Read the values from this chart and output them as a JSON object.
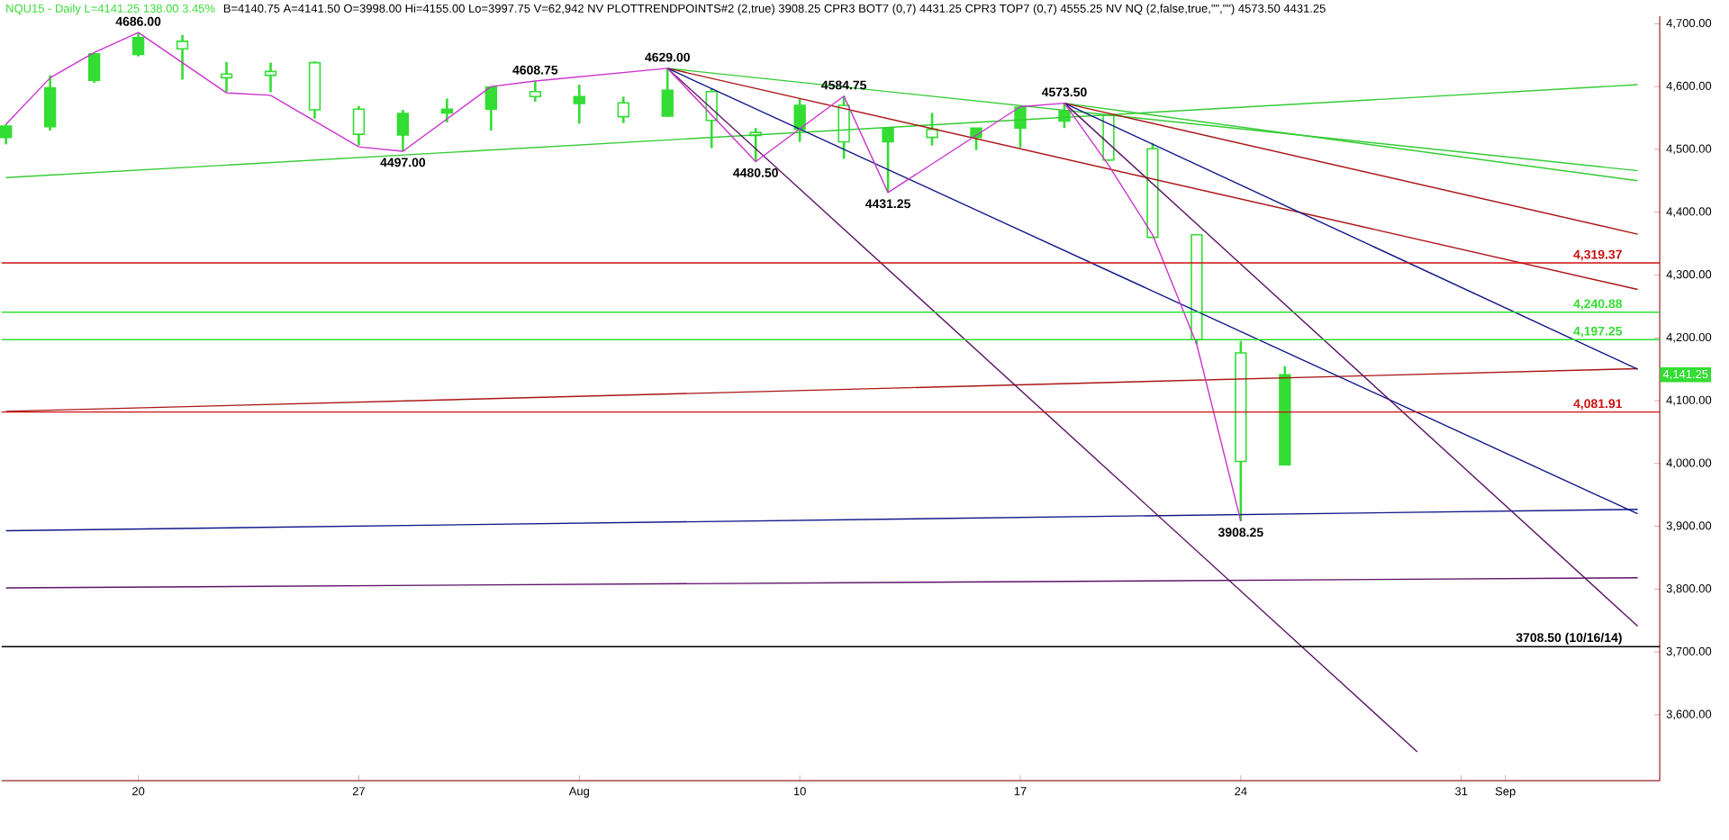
{
  "chart_data": {
    "type": "candlestick",
    "title": "NQU15 - Daily L=4141.25 138.00 3.45%",
    "subtitle": "B=4140.75 A=4141.50 O=3998.00 Hi=4155.00 Lo=3997.75 V=62,942 NV PLOTTRENDPOINTS#2 (2,true) 3908.25 CPR3 BOT7 (0,7) 4431.25 CPR3 TOP7 (0,7) 4555.25 NV NQ (2,false,true,\"\",\"\") 4573.50 4431.25",
    "categories": [
      null,
      null,
      null,
      "20",
      null,
      null,
      null,
      null,
      "27",
      null,
      null,
      null,
      null,
      "Aug",
      null,
      null,
      null,
      null,
      "10",
      null,
      null,
      null,
      null,
      "17",
      null,
      null,
      null,
      null,
      "24",
      null,
      null,
      null,
      null,
      "31",
      "Sep",
      null,
      null,
      null
    ],
    "color": "#33dd33",
    "ohlc": [
      [
        4519,
        4540,
        4508,
        4537
      ],
      [
        4536,
        4618,
        4530,
        4598
      ],
      [
        4610,
        4654,
        4606,
        4652
      ],
      [
        4651,
        4686,
        4648,
        4678
      ],
      [
        4672,
        4682,
        4611,
        4660
      ],
      [
        4620,
        4639,
        4591,
        4614
      ],
      [
        4624,
        4638,
        4591,
        4618
      ],
      [
        4638,
        4640,
        4549,
        4563
      ],
      [
        4564,
        4569,
        4506,
        4524
      ],
      [
        4523,
        4563,
        4497,
        4557
      ],
      [
        4558,
        4581,
        4543,
        4564
      ],
      [
        4564,
        4599,
        4530,
        4599
      ],
      [
        4592,
        4608.75,
        4576,
        4584
      ],
      [
        4573,
        4603,
        4541,
        4584
      ],
      [
        4574,
        4584,
        4542,
        4552
      ],
      [
        4553,
        4629,
        4552,
        4594
      ],
      [
        4592,
        4597,
        4502,
        4546
      ],
      [
        4527,
        4534,
        4480.5,
        4522
      ],
      [
        4532,
        4580,
        4512,
        4570
      ],
      [
        4570,
        4584.75,
        4485,
        4512
      ],
      [
        4512,
        4535,
        4431.25,
        4533
      ],
      [
        4532,
        4558,
        4506,
        4519
      ],
      [
        4519,
        4534,
        4499,
        4534
      ],
      [
        4534,
        4567,
        4503,
        4567
      ],
      [
        4545,
        4573.5,
        4534,
        4561
      ],
      [
        4554,
        4555,
        4482,
        4483
      ],
      [
        4501,
        4510,
        4360,
        4360
      ],
      [
        4364,
        4364,
        4190,
        4197.25
      ],
      [
        4176,
        4195,
        3908.25,
        4003.25
      ],
      [
        3998,
        4155,
        3997.75,
        4141.25
      ],
      null,
      null,
      null,
      null,
      null,
      null,
      null,
      null
    ],
    "series": [
      {
        "type": "line",
        "color": "#33cc33",
        "values": [
          4455,
          null,
          null,
          null,
          null,
          null,
          null,
          null,
          null,
          null,
          null,
          null,
          null,
          null,
          null,
          null,
          null,
          null,
          null,
          null,
          null,
          null,
          null,
          null,
          null,
          null,
          null,
          null,
          null,
          null,
          null,
          null,
          null,
          null,
          null,
          null,
          null,
          4603
        ]
      },
      {
        "type": "line",
        "color": "#33cc33",
        "values": [
          null,
          null,
          null,
          null,
          null,
          null,
          null,
          null,
          null,
          null,
          null,
          null,
          null,
          null,
          null,
          4629,
          null,
          null,
          null,
          null,
          null,
          null,
          null,
          null,
          null,
          null,
          null,
          null,
          null,
          null,
          null,
          null,
          null,
          null,
          null,
          null,
          null,
          4466
        ]
      },
      {
        "type": "line",
        "color": "#33cc33",
        "values": [
          null,
          null,
          null,
          null,
          null,
          null,
          null,
          null,
          null,
          null,
          null,
          null,
          null,
          null,
          null,
          null,
          null,
          null,
          null,
          null,
          null,
          null,
          null,
          null,
          4573.5,
          null,
          null,
          null,
          null,
          null,
          null,
          null,
          null,
          null,
          null,
          null,
          null,
          4450
        ]
      },
      {
        "type": "line",
        "color": "#aa1515",
        "values": [
          null,
          null,
          null,
          null,
          null,
          null,
          null,
          null,
          null,
          null,
          null,
          null,
          null,
          null,
          null,
          4629,
          null,
          null,
          null,
          null,
          null,
          null,
          null,
          null,
          null,
          null,
          null,
          null,
          null,
          null,
          null,
          null,
          null,
          null,
          null,
          null,
          null,
          4277
        ]
      },
      {
        "type": "line",
        "color": "#aa1515",
        "values": [
          null,
          null,
          null,
          null,
          null,
          null,
          null,
          null,
          null,
          null,
          null,
          null,
          null,
          null,
          null,
          null,
          null,
          null,
          null,
          null,
          null,
          null,
          null,
          null,
          4573.5,
          null,
          null,
          null,
          null,
          null,
          null,
          null,
          null,
          null,
          null,
          null,
          null,
          4365
        ]
      },
      {
        "type": "line",
        "color": "#aa1515",
        "values": [
          4083,
          null,
          null,
          null,
          null,
          null,
          null,
          null,
          null,
          null,
          null,
          null,
          null,
          null,
          null,
          null,
          null,
          null,
          null,
          null,
          null,
          null,
          null,
          null,
          null,
          null,
          null,
          null,
          null,
          null,
          null,
          null,
          null,
          null,
          null,
          null,
          null,
          4151
        ]
      },
      {
        "type": "line",
        "color": "#101888",
        "values": [
          null,
          null,
          null,
          null,
          null,
          null,
          null,
          null,
          null,
          null,
          null,
          null,
          null,
          null,
          null,
          4629,
          null,
          null,
          null,
          null,
          null,
          null,
          null,
          null,
          null,
          null,
          null,
          null,
          null,
          null,
          null,
          null,
          null,
          null,
          null,
          null,
          null,
          3920
        ]
      },
      {
        "type": "line",
        "color": "#101888",
        "values": [
          null,
          null,
          null,
          null,
          null,
          null,
          null,
          null,
          null,
          null,
          null,
          null,
          null,
          null,
          null,
          null,
          null,
          null,
          null,
          null,
          null,
          null,
          null,
          null,
          4573.5,
          null,
          null,
          null,
          null,
          null,
          null,
          null,
          null,
          null,
          null,
          null,
          null,
          4150
        ]
      },
      {
        "type": "line",
        "color": "#101888",
        "values": [
          3893,
          null,
          null,
          null,
          null,
          null,
          null,
          null,
          null,
          null,
          null,
          null,
          null,
          null,
          null,
          null,
          null,
          null,
          null,
          null,
          null,
          null,
          null,
          null,
          null,
          null,
          null,
          null,
          null,
          null,
          null,
          null,
          null,
          null,
          null,
          null,
          null,
          3927
        ]
      },
      {
        "type": "line",
        "color": "#5c1466",
        "values": [
          null,
          null,
          null,
          null,
          null,
          null,
          null,
          null,
          null,
          null,
          null,
          null,
          null,
          null,
          null,
          4629,
          null,
          null,
          null,
          null,
          null,
          null,
          null,
          null,
          null,
          null,
          null,
          null,
          null,
          null,
          null,
          null,
          3541,
          null,
          null,
          null,
          null,
          null
        ]
      },
      {
        "type": "line",
        "color": "#5c1466",
        "values": [
          null,
          null,
          null,
          null,
          null,
          null,
          null,
          null,
          null,
          null,
          null,
          null,
          null,
          null,
          null,
          null,
          null,
          null,
          null,
          null,
          null,
          null,
          null,
          null,
          4573.5,
          null,
          null,
          null,
          null,
          null,
          null,
          null,
          null,
          null,
          null,
          null,
          null,
          3741
        ]
      },
      {
        "type": "line",
        "color": "#5c1466",
        "values": [
          3802,
          null,
          null,
          null,
          null,
          null,
          null,
          null,
          null,
          null,
          null,
          null,
          null,
          null,
          null,
          null,
          null,
          null,
          null,
          null,
          null,
          null,
          null,
          null,
          null,
          null,
          null,
          null,
          null,
          null,
          null,
          null,
          null,
          null,
          null,
          null,
          null,
          3818
        ]
      },
      {
        "type": "line",
        "color": "#cc33cc",
        "values": [
          4540,
          4614,
          4654,
          4686,
          null,
          4590,
          4586,
          null,
          4504,
          4497,
          null,
          4600,
          4608.75,
          null,
          null,
          4629,
          null,
          4480.5,
          null,
          4584.75,
          4431.25,
          null,
          null,
          4568,
          4573.5,
          4475,
          4364,
          4190,
          3908.25,
          null,
          null,
          null,
          null,
          null,
          null,
          null,
          null,
          null
        ]
      }
    ],
    "ref_lines": [
      {
        "axis": "y",
        "value": 4319.37,
        "label": "4,319.37",
        "color": "#cc1111"
      },
      {
        "axis": "y",
        "value": 4240.88,
        "label": "4,240.88",
        "color": "#33dd33"
      },
      {
        "axis": "y",
        "value": 4197.25,
        "label": "4,197.25",
        "color": "#33dd33"
      },
      {
        "axis": "y",
        "value": 4081.91,
        "label": "4,081.91",
        "color": "#cc1111"
      },
      {
        "axis": "y",
        "value": 3708.5,
        "label": "3708.50 (10/16/14)",
        "color": "#000000"
      }
    ],
    "annotations": [
      {
        "text": "4686.00",
        "y": 4686
      },
      {
        "text": "4497.00",
        "y": 4497
      },
      {
        "text": "4608.75",
        "y": 4608.75
      },
      {
        "text": "4629.00",
        "y": 4629
      },
      {
        "text": "4480.50",
        "y": 4480.5
      },
      {
        "text": "4584.75",
        "y": 4584.75
      },
      {
        "text": "4431.25",
        "y": 4431.25
      },
      {
        "text": "4573.50",
        "y": 4573.5
      },
      {
        "text": "3908.25",
        "y": 3908.25
      },
      "4,141.25"
    ],
    "ylim": [
      3495,
      4712
    ],
    "yticks": [
      {
        "value": 3600,
        "label": "3,600.00"
      },
      {
        "value": 3700,
        "label": "3,700.00"
      },
      {
        "value": 3800,
        "label": "3,800.00"
      },
      {
        "value": 3900,
        "label": "3,900.00"
      },
      {
        "value": 4000,
        "label": "4,000.00"
      },
      {
        "value": 4100,
        "label": "4,100.00"
      },
      {
        "value": 4200,
        "label": "4,200.00"
      },
      {
        "value": 4300,
        "label": "4,300.00"
      },
      {
        "value": 4400,
        "label": "4,400.00"
      },
      {
        "value": 4500,
        "label": "4,500.00"
      },
      {
        "value": 4600,
        "label": "4,600.00"
      },
      {
        "value": 4700,
        "label": "4,700.00"
      }
    ]
  }
}
